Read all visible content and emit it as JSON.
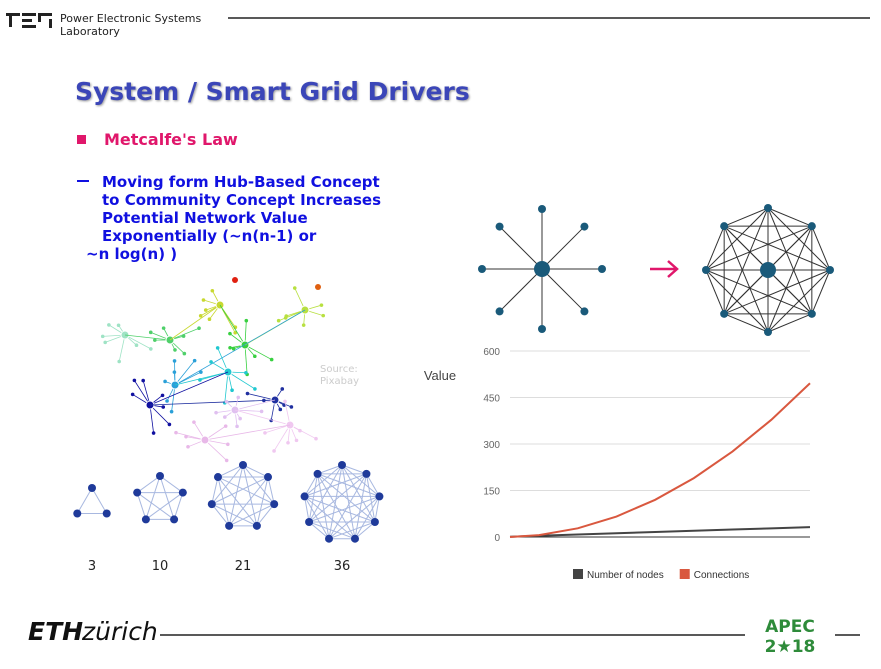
{
  "header": {
    "lab": [
      "Power Electronic Systems",
      "Laboratory"
    ]
  },
  "title": "System / Smart Grid Drivers",
  "bullet": "Metcalfe's Law",
  "sub_bullet": [
    "Moving form Hub-Based Concept",
    "to Community Concept Increases",
    "Potential Network Value",
    "Exponentially (~n(n-1)  or",
    "~n log(n) )"
  ],
  "source": [
    "Source:",
    "Pixabay"
  ],
  "network_labels": [
    3,
    10,
    21,
    36
  ],
  "footer": {
    "eth": "ETH",
    "zurich": "zürich",
    "apec": [
      "APEC",
      "2★18"
    ]
  },
  "chart_data": {
    "type": "line",
    "ylabel": "Value",
    "x": [
      1,
      4,
      8,
      12,
      16,
      20,
      24,
      28,
      32
    ],
    "xlim": [
      1,
      32
    ],
    "ylim": [
      0,
      600
    ],
    "yticks": [
      0,
      150,
      300,
      450,
      600
    ],
    "grid": true,
    "legend": "bottom",
    "series": [
      {
        "name": "Number of nodes",
        "color": "#444444",
        "values": [
          1,
          4,
          8,
          12,
          16,
          20,
          24,
          28,
          32
        ]
      },
      {
        "name": "Connections",
        "color": "#d9583f",
        "values": [
          0,
          6,
          28,
          66,
          120,
          190,
          276,
          378,
          496
        ]
      }
    ]
  }
}
